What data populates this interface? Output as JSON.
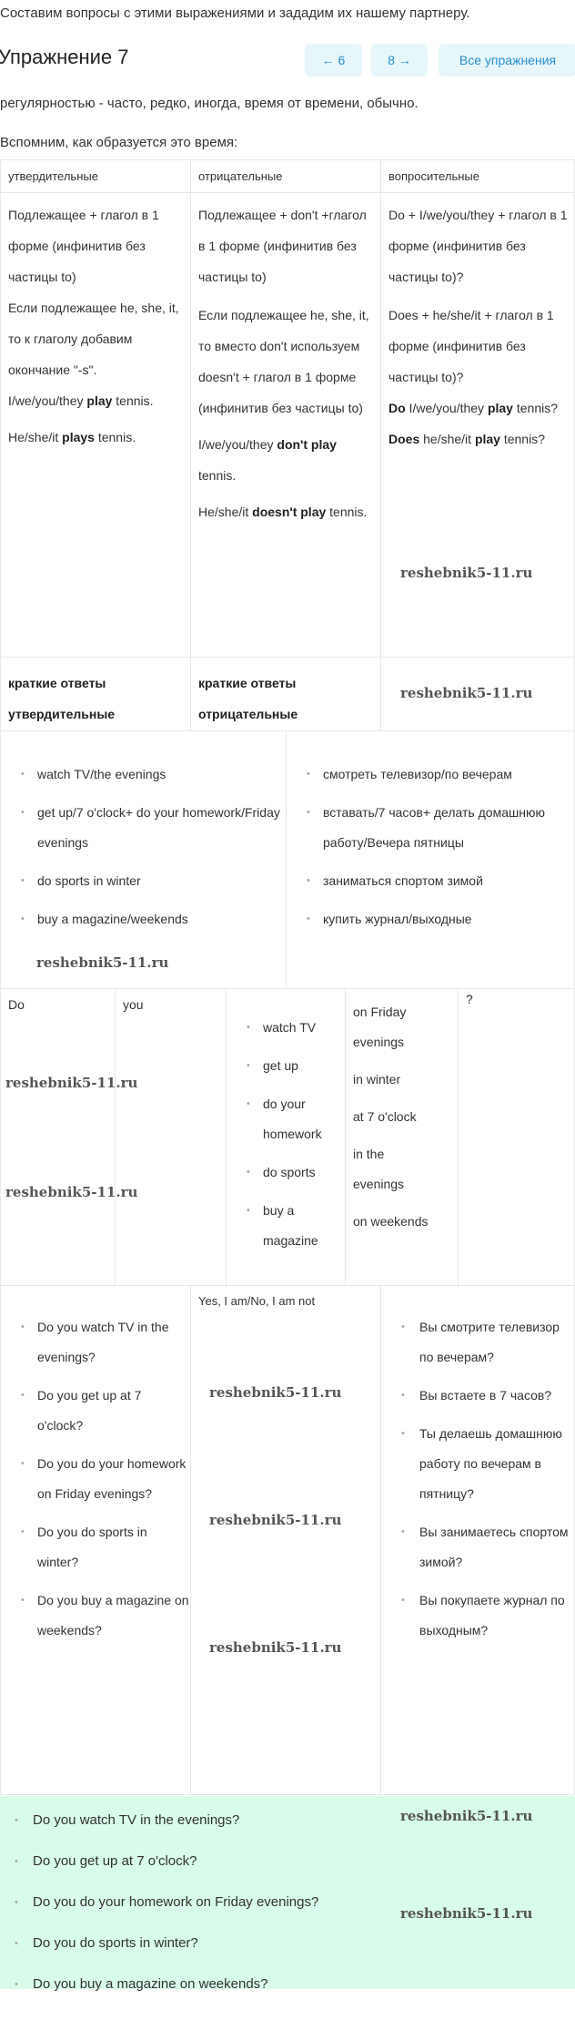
{
  "intro": "Составим вопросы с этими выражениями и зададим их нашему партнеру.",
  "title": "Упражнение 7",
  "nav": {
    "prev": "← 6",
    "next": "8 →",
    "all": "Все упражнения"
  },
  "regularity": "регулярностью - часто, редко, иногда, время от времени, обычно.",
  "recall": "Вспомним, как образуется это время:",
  "watermark": "reshebnik5-11.ru",
  "table1": {
    "headers": [
      "утвердительные",
      "отрицательные",
      "вопросительные"
    ],
    "col1": {
      "rule": "Подлежащее + глагол в 1 форме (инфинитив без частицы to)",
      "rule2": "Если подлежащее he, she, it, то к глаголу добавим окончание \"-s\".",
      "ex1a": "I/we/you/they ",
      "ex1b": "play",
      "ex1c": " tennis.",
      "ex2a": "He/she/it ",
      "ex2b": "plays",
      "ex2c": " tennis."
    },
    "col2": {
      "rule": "Подлежащее + don't +глагол в 1 форме (инфинитив без частицы to)",
      "rule2": "Если подлежащее he, she, it, то вместо don't используем doesn't + глагол в 1 форме (инфинитив без частицы to)",
      "ex1a": "I/we/you/they ",
      "ex1b": "don't play",
      "ex1c": " tennis.",
      "ex2a": "He/she/it ",
      "ex2b": "doesn't play",
      "ex2c": " tennis."
    },
    "col3": {
      "rule": "Do + I/we/you/they + глагол в 1 форме (инфинитив без частицы to)?",
      "rule2": "Does + he/she/it + глагол в 1 форме (инфинитив без частицы to)?",
      "ex1a": "Do",
      "ex1b": " I/we/you/they ",
      "ex1c": "play",
      "ex1d": " tennis?",
      "ex2a": "Does",
      "ex2b": " he/she/it ",
      "ex2c": "play",
      "ex2d": " tennis?"
    },
    "short": [
      "краткие ответы утвердительные",
      "краткие ответы отрицательные"
    ]
  },
  "phrases": {
    "en": [
      "watch TV/the evenings",
      "get up/7 o'clock+ do your homework/Friday evenings",
      "do sports in winter",
      "buy a magazine/weekends"
    ],
    "ru": [
      "смотреть телевизор/по вечерам",
      "вставать/7 часов+ делать домашнюю работу/Вечера пятницы",
      "заниматься спортом зимой",
      "купить журнал/выходные"
    ]
  },
  "builder": {
    "do": "Do",
    "you": "you",
    "verbs": [
      "watch TV",
      "get up",
      "do your homework",
      "do sports",
      "buy a magazine"
    ],
    "times": [
      "on Friday evenings",
      "in winter",
      "at 7 o'clock",
      "in the evenings",
      "on weekends"
    ],
    "q": "?"
  },
  "answers": {
    "en": [
      "Do you watch TV in the evenings?",
      "Do you get up at 7 o'clock?",
      "Do you do your homework on Friday evenings?",
      "Do you do sports in winter?",
      "Do you buy a magazine on weekends?"
    ],
    "short": "Yes, I am/No, I am not",
    "ru": [
      "Вы смотрите телевизор по вечерам?",
      "Вы встаете в 7 часов?",
      "Ты делаешь домашнюю работу по вечерам в пятницу?",
      "Вы занимаетесь спортом зимой?",
      "Вы покупаете журнал по выходным?"
    ]
  },
  "final": [
    "Do you watch TV in the evenings?",
    "Do you get up at 7 o'clock?",
    "Do you do your homework on Friday evenings?",
    "Do you do sports in winter?",
    "Do you buy a magazine on weekends?"
  ],
  "colors": {
    "nav_bg": "#e6f6fb",
    "nav_text": "#2a8fd0",
    "answer_bg": "#d9fbea"
  }
}
